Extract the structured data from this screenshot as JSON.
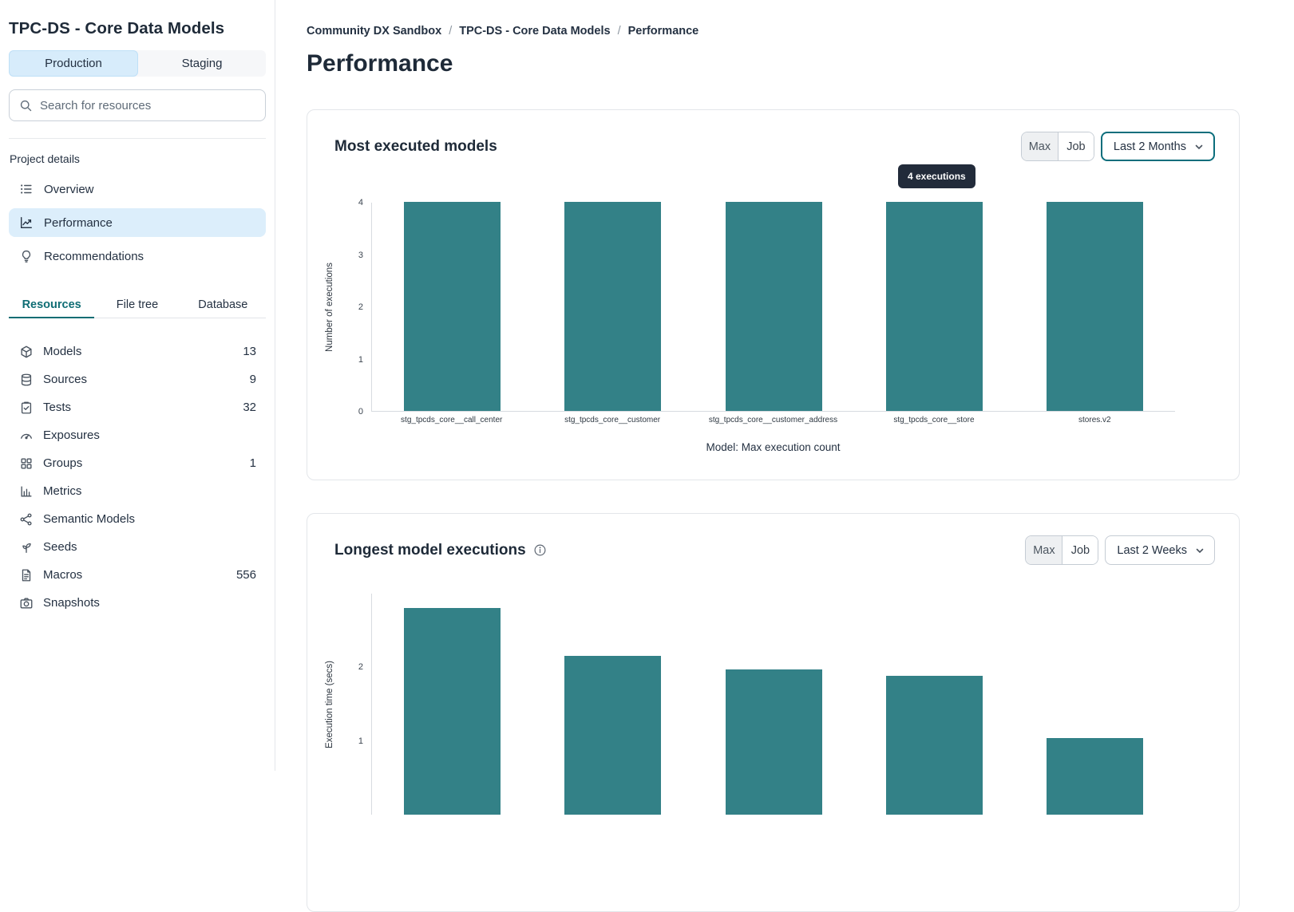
{
  "colors": {
    "bar_teal": "#338187",
    "accent_teal": "#0f6d74",
    "active_env_bg": "#d7ecfb",
    "active_nav_bg": "#dceefb",
    "tooltip_bg": "#222b3a"
  },
  "sidebar": {
    "title": "TPC-DS - Core Data Models",
    "env_tabs": {
      "production": "Production",
      "staging": "Staging"
    },
    "search_placeholder": "Search for resources",
    "section_label": "Project details",
    "nav": {
      "overview": "Overview",
      "performance": "Performance",
      "recommendations": "Recommendations"
    },
    "resource_tabs": {
      "resources": "Resources",
      "file_tree": "File tree",
      "database": "Database"
    },
    "resources": [
      {
        "label": "Models",
        "count": "13",
        "icon": "models-icon"
      },
      {
        "label": "Sources",
        "count": "9",
        "icon": "sources-icon"
      },
      {
        "label": "Tests",
        "count": "32",
        "icon": "tests-icon"
      },
      {
        "label": "Exposures",
        "count": "",
        "icon": "exposures-icon"
      },
      {
        "label": "Groups",
        "count": "1",
        "icon": "groups-icon"
      },
      {
        "label": "Metrics",
        "count": "",
        "icon": "metrics-icon"
      },
      {
        "label": "Semantic Models",
        "count": "",
        "icon": "semantic-models-icon"
      },
      {
        "label": "Seeds",
        "count": "",
        "icon": "seeds-icon"
      },
      {
        "label": "Macros",
        "count": "556",
        "icon": "macros-icon"
      },
      {
        "label": "Snapshots",
        "count": "",
        "icon": "snapshots-icon"
      }
    ]
  },
  "breadcrumb": [
    "Community DX Sandbox",
    "TPC-DS - Core Data Models",
    "Performance"
  ],
  "page_title": "Performance",
  "cards": [
    {
      "title": "Most executed models",
      "toggle": [
        "Max",
        "Job"
      ],
      "toggle_active": "Max",
      "period": "Last 2 Months",
      "tooltip": "4 executions"
    },
    {
      "title": "Longest model executions",
      "toggle": [
        "Max",
        "Job"
      ],
      "toggle_active": "Max",
      "period": "Last 2 Weeks"
    }
  ],
  "chart_data": [
    {
      "type": "bar",
      "title": "Most executed models",
      "categories": [
        "stg_tpcds_core__call_center",
        "stg_tpcds_core__customer",
        "stg_tpcds_core__customer_address",
        "stg_tpcds_core__store",
        "stores.v2"
      ],
      "values": [
        4,
        4,
        4,
        4,
        4
      ],
      "xlabel": "Model: Max execution count",
      "ylabel": "Number of executions",
      "ylim": [
        0,
        4
      ],
      "yticks": [
        0,
        1,
        2,
        3,
        4
      ],
      "bar_color": "#338187",
      "annotation": "4 executions",
      "legend": "none",
      "grid": false
    },
    {
      "type": "bar",
      "title": "Longest model executions",
      "categories": [
        "",
        "",
        "",
        "",
        ""
      ],
      "values": [
        2.8,
        2.15,
        1.97,
        1.88,
        1.04
      ],
      "xlabel": "",
      "ylabel": "Execution time (secs)",
      "ylim": [
        0,
        3
      ],
      "yticks": [
        1,
        2
      ],
      "bar_color": "#338187",
      "legend": "none",
      "grid": false
    }
  ]
}
